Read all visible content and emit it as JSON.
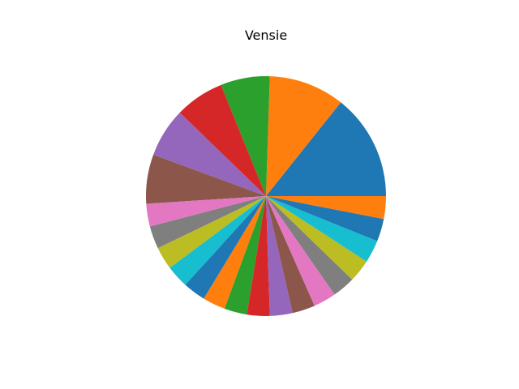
{
  "chart_data": {
    "type": "pie",
    "title": "Vensie",
    "start_angle_deg": 0,
    "direction": "counterclockwise",
    "slices": [
      {
        "value": 14,
        "color": "#1f77b4"
      },
      {
        "value": 10,
        "color": "#ff7f0e"
      },
      {
        "value": 6.5,
        "color": "#2ca02c"
      },
      {
        "value": 6.5,
        "color": "#d62728"
      },
      {
        "value": 6.5,
        "color": "#9467bd"
      },
      {
        "value": 6.5,
        "color": "#8c564b"
      },
      {
        "value": 3,
        "color": "#e377c2"
      },
      {
        "value": 3,
        "color": "#7f7f7f"
      },
      {
        "value": 3,
        "color": "#bcbd22"
      },
      {
        "value": 3,
        "color": "#17becf"
      },
      {
        "value": 3,
        "color": "#1f77b4"
      },
      {
        "value": 3,
        "color": "#ff7f0e"
      },
      {
        "value": 3,
        "color": "#2ca02c"
      },
      {
        "value": 3,
        "color": "#d62728"
      },
      {
        "value": 3,
        "color": "#9467bd"
      },
      {
        "value": 3,
        "color": "#8c564b"
      },
      {
        "value": 3,
        "color": "#e377c2"
      },
      {
        "value": 3,
        "color": "#7f7f7f"
      },
      {
        "value": 3,
        "color": "#bcbd22"
      },
      {
        "value": 3,
        "color": "#17becf"
      },
      {
        "value": 3,
        "color": "#1f77b4"
      },
      {
        "value": 3,
        "color": "#ff7f0e"
      }
    ]
  }
}
